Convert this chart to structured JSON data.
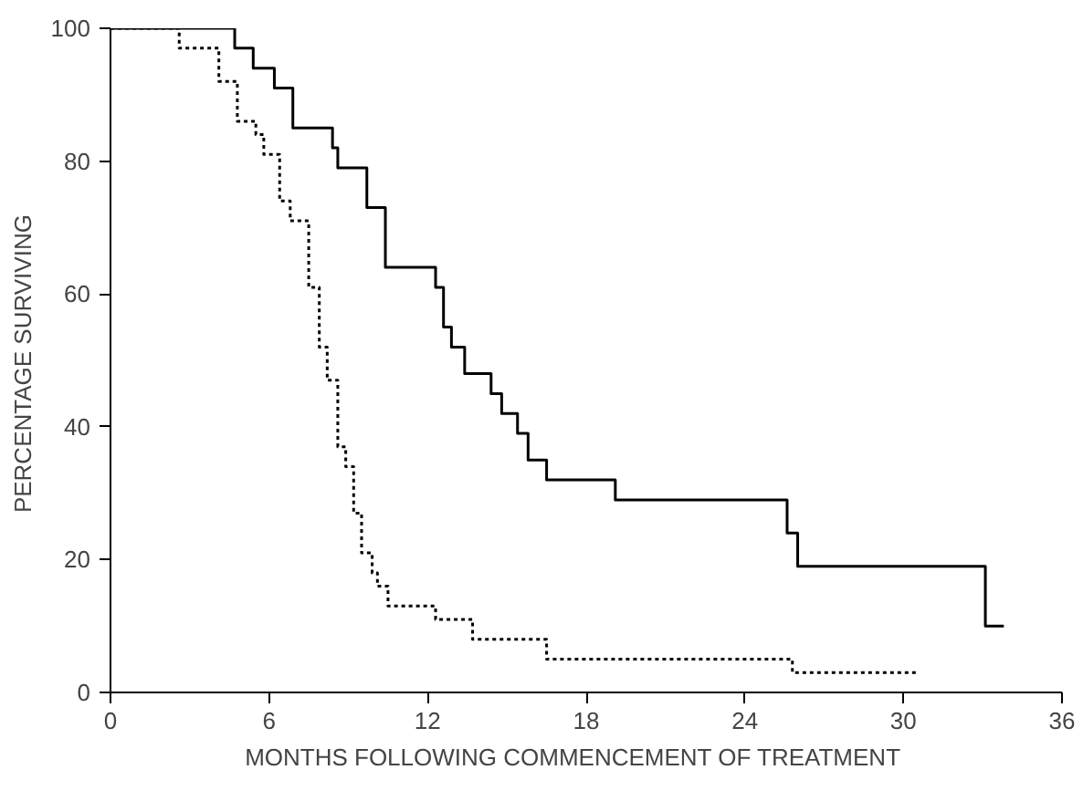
{
  "chart_data": {
    "type": "step",
    "xlabel": "MONTHS  FOLLOWING  COMMENCEMENT  OF  TREATMENT",
    "ylabel": "PERCENTAGE  SURVIVING",
    "xlim": [
      0,
      36
    ],
    "xticks": [
      0,
      6,
      12,
      18,
      24,
      30,
      36
    ],
    "ylim": [
      0,
      100
    ],
    "yticks": [
      0,
      20,
      40,
      60,
      80,
      100
    ],
    "series": [
      {
        "color": "#000000",
        "line_style": "solid",
        "x": [
          0,
          4.7,
          5.4,
          6.2,
          6.9,
          8.4,
          8.6,
          9.7,
          10.4,
          12.3,
          12.6,
          12.9,
          13.4,
          14.4,
          14.8,
          15.4,
          15.8,
          16.5,
          19.1,
          25.6,
          26.0,
          33.1,
          33.8
        ],
        "values": [
          100,
          97,
          94,
          91,
          85,
          82,
          79,
          73,
          64,
          61,
          55,
          52,
          48,
          45,
          42,
          39,
          35,
          32,
          29,
          24,
          19,
          10,
          10
        ]
      },
      {
        "color": "#000000",
        "line_style": "dotted",
        "x": [
          0,
          2.6,
          4.1,
          4.8,
          5.5,
          5.8,
          6.4,
          6.8,
          7.5,
          7.9,
          8.2,
          8.6,
          8.9,
          9.2,
          9.5,
          9.9,
          10.1,
          10.5,
          12.3,
          13.7,
          16.5,
          25.8,
          30.5
        ],
        "values": [
          100,
          97,
          92,
          86,
          84,
          81,
          74,
          71,
          61,
          52,
          47,
          37,
          34,
          27,
          21,
          18,
          16,
          13,
          11,
          8,
          5,
          3,
          3
        ]
      }
    ]
  }
}
